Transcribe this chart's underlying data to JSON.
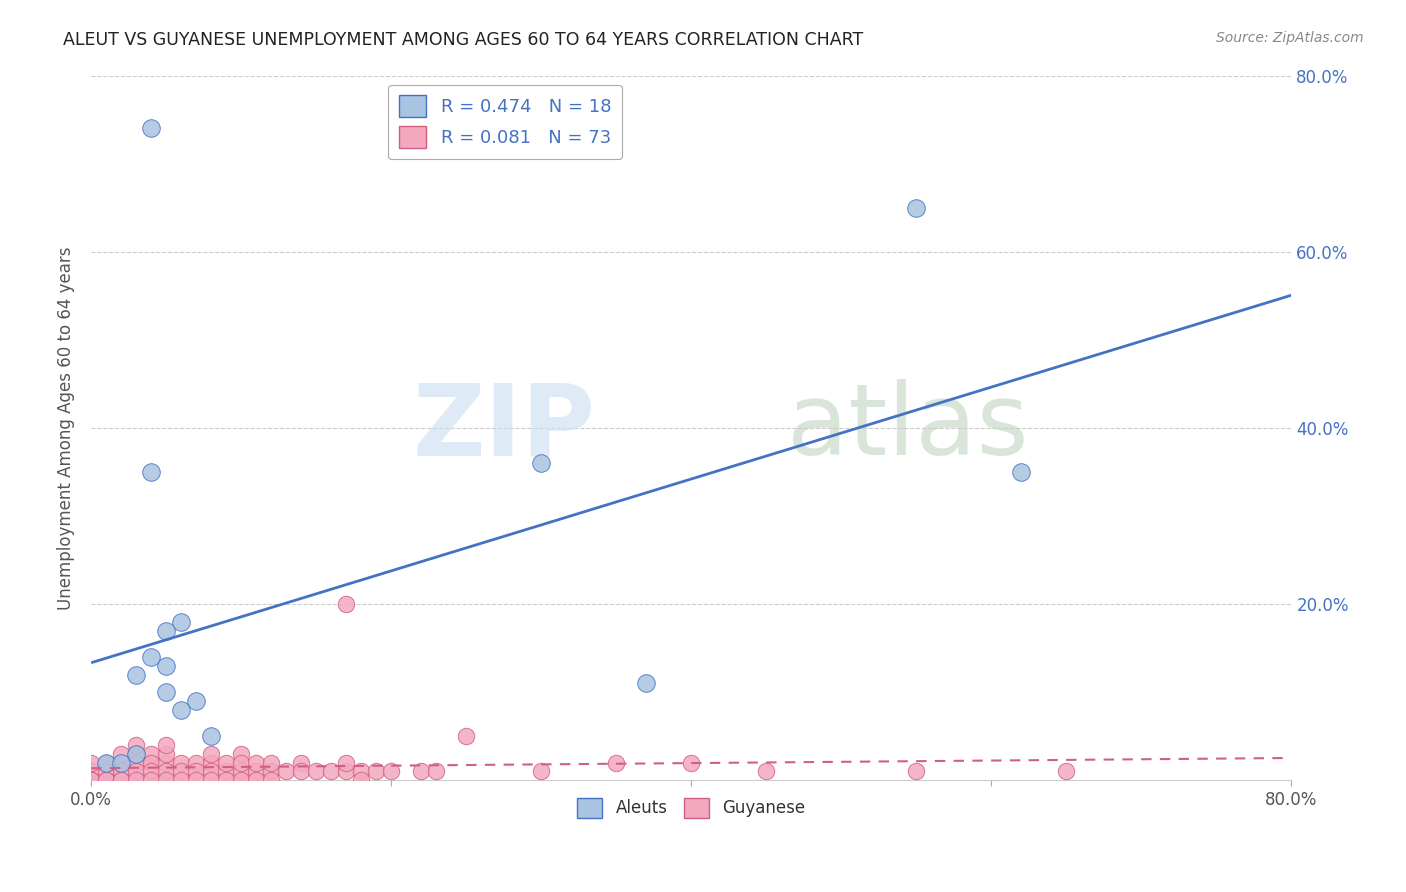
{
  "title": "ALEUT VS GUYANESE UNEMPLOYMENT AMONG AGES 60 TO 64 YEARS CORRELATION CHART",
  "source": "Source: ZipAtlas.com",
  "ylabel": "Unemployment Among Ages 60 to 64 years",
  "xlim": [
    0.0,
    0.8
  ],
  "ylim": [
    0.0,
    0.8
  ],
  "xtick_vals": [
    0.0,
    0.2,
    0.4,
    0.6,
    0.8
  ],
  "xtick_labels": [
    "0.0%",
    "",
    "",
    "",
    "80.0%"
  ],
  "ytick_vals": [
    0.2,
    0.4,
    0.6,
    0.8
  ],
  "ytick_right_labels": [
    "20.0%",
    "40.0%",
    "60.0%",
    "80.0%"
  ],
  "aleuts_color": "#a8c4e0",
  "guyanese_color": "#f4a8c0",
  "aleuts_line_color": "#4472c4",
  "guyanese_line_color": "#d06080",
  "aleuts_R": 0.474,
  "aleuts_N": 18,
  "guyanese_R": 0.081,
  "guyanese_N": 73,
  "aleuts_x": [
    0.04,
    0.04,
    0.06,
    0.05,
    0.03,
    0.04,
    0.07,
    0.06,
    0.05,
    0.08,
    0.03,
    0.01,
    0.02,
    0.05,
    0.37,
    0.62,
    0.55,
    0.3
  ],
  "aleuts_y": [
    0.74,
    0.35,
    0.18,
    0.17,
    0.12,
    0.14,
    0.09,
    0.08,
    0.13,
    0.05,
    0.03,
    0.02,
    0.02,
    0.1,
    0.11,
    0.35,
    0.65,
    0.36
  ],
  "guyanese_x": [
    0.0,
    0.0,
    0.0,
    0.0,
    0.0,
    0.0,
    0.01,
    0.01,
    0.01,
    0.01,
    0.02,
    0.02,
    0.02,
    0.02,
    0.02,
    0.03,
    0.03,
    0.03,
    0.03,
    0.03,
    0.04,
    0.04,
    0.04,
    0.04,
    0.05,
    0.05,
    0.05,
    0.05,
    0.05,
    0.06,
    0.06,
    0.06,
    0.07,
    0.07,
    0.07,
    0.08,
    0.08,
    0.08,
    0.08,
    0.09,
    0.09,
    0.09,
    0.1,
    0.1,
    0.1,
    0.1,
    0.11,
    0.11,
    0.11,
    0.12,
    0.12,
    0.12,
    0.13,
    0.14,
    0.14,
    0.15,
    0.16,
    0.17,
    0.17,
    0.17,
    0.18,
    0.18,
    0.19,
    0.2,
    0.22,
    0.23,
    0.25,
    0.3,
    0.35,
    0.4,
    0.45,
    0.55,
    0.65
  ],
  "guyanese_y": [
    0.0,
    0.01,
    0.0,
    0.02,
    0.0,
    0.0,
    0.01,
    0.02,
    0.0,
    0.0,
    0.02,
    0.01,
    0.0,
    0.03,
    0.0,
    0.03,
    0.02,
    0.01,
    0.0,
    0.04,
    0.03,
    0.02,
    0.01,
    0.0,
    0.02,
    0.03,
    0.01,
    0.0,
    0.04,
    0.02,
    0.01,
    0.0,
    0.02,
    0.01,
    0.0,
    0.02,
    0.01,
    0.0,
    0.03,
    0.01,
    0.0,
    0.02,
    0.01,
    0.0,
    0.03,
    0.02,
    0.01,
    0.0,
    0.02,
    0.01,
    0.0,
    0.02,
    0.01,
    0.02,
    0.01,
    0.01,
    0.01,
    0.2,
    0.01,
    0.02,
    0.01,
    0.0,
    0.01,
    0.01,
    0.01,
    0.01,
    0.05,
    0.01,
    0.02,
    0.02,
    0.01,
    0.01,
    0.01
  ]
}
